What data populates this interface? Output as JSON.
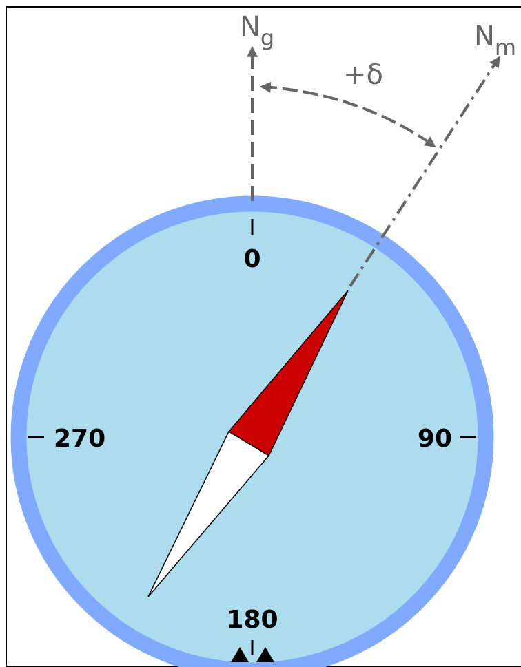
{
  "axes": {
    "true_north": {
      "main": "N",
      "sub": "g"
    },
    "magnetic_north": {
      "main": "N",
      "sub": "m"
    },
    "declination": "+δ"
  },
  "dial": {
    "labels": [
      "0",
      "90",
      "180",
      "270"
    ]
  }
}
